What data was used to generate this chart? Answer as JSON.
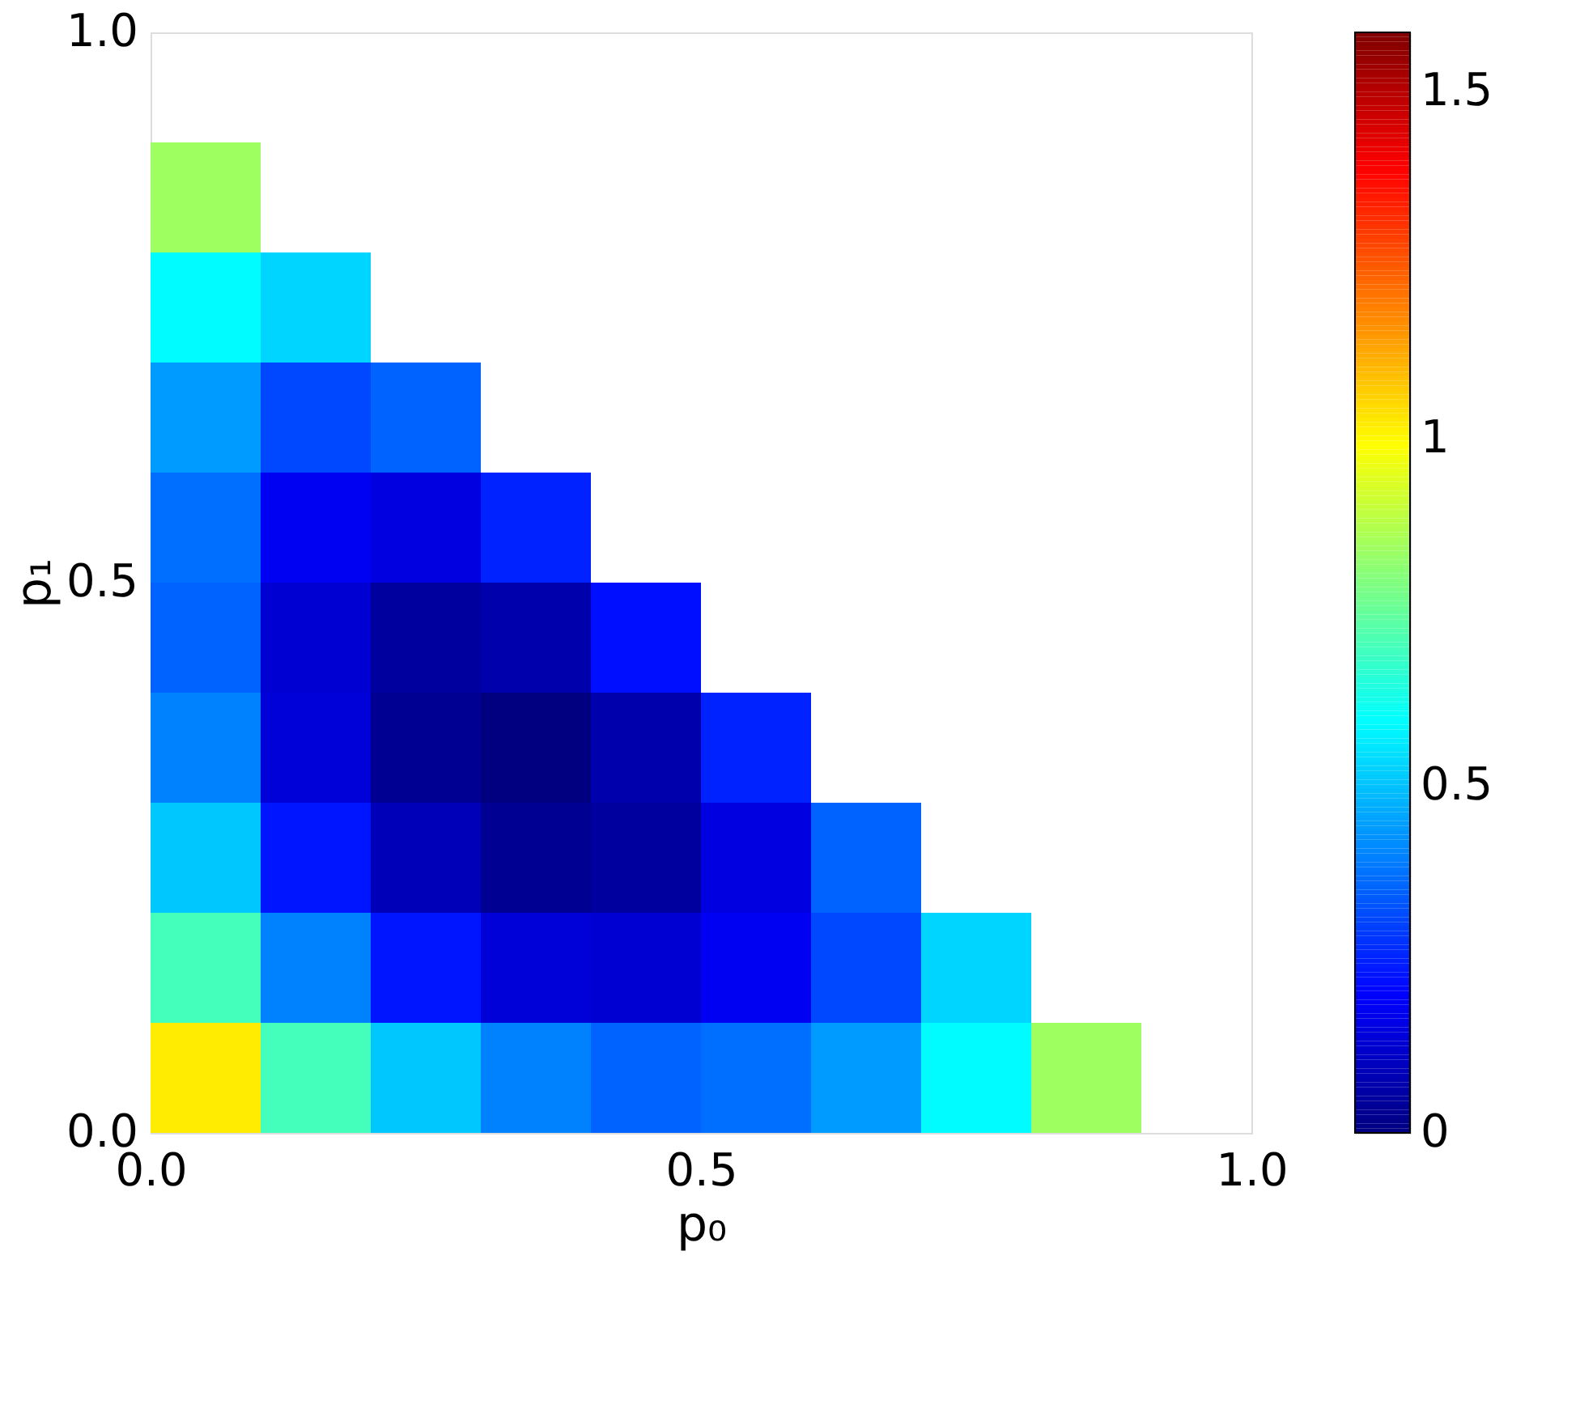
{
  "chart_data": {
    "type": "heatmap",
    "xlabel": "p₀",
    "ylabel": "p₁",
    "x": [
      0.05,
      0.15,
      0.25,
      0.35,
      0.45,
      0.55,
      0.65,
      0.75,
      0.85
    ],
    "y": [
      0.85,
      0.75,
      0.65,
      0.55,
      0.45,
      0.35,
      0.25,
      0.15,
      0.05
    ],
    "cells": [
      [
        0.84,
        null,
        null,
        null,
        null,
        null,
        null,
        null,
        null
      ],
      [
        0.59,
        0.53,
        null,
        null,
        null,
        null,
        null,
        null,
        null
      ],
      [
        0.44,
        0.31,
        0.35,
        null,
        null,
        null,
        null,
        null,
        null
      ],
      [
        0.37,
        0.18,
        0.15,
        0.25,
        null,
        null,
        null,
        null,
        null
      ],
      [
        0.35,
        0.13,
        0.05,
        0.07,
        0.22,
        null,
        null,
        null,
        null
      ],
      [
        0.4,
        0.14,
        0.03,
        0.0,
        0.07,
        0.25,
        null,
        null,
        null
      ],
      [
        0.51,
        0.23,
        0.09,
        0.03,
        0.05,
        0.15,
        0.35,
        null,
        null
      ],
      [
        0.7,
        0.4,
        0.23,
        0.14,
        0.13,
        0.18,
        0.31,
        0.53,
        null
      ],
      [
        1.02,
        0.7,
        0.51,
        0.4,
        0.35,
        0.37,
        0.44,
        0.59,
        0.84
      ]
    ],
    "xlim": [
      0,
      1
    ],
    "ylim": [
      0,
      1
    ],
    "xticks": [
      {
        "value": 0,
        "label": "0.0"
      },
      {
        "value": 0.5,
        "label": "0.5"
      },
      {
        "value": 1,
        "label": "1.0"
      }
    ],
    "yticks": [
      {
        "value": 0,
        "label": "0.0"
      },
      {
        "value": 0.5,
        "label": "0.5"
      },
      {
        "value": 1,
        "label": "1.0"
      }
    ],
    "clim": [
      0,
      1.585
    ],
    "cticks": [
      0,
      0.5,
      1,
      1.5
    ]
  }
}
